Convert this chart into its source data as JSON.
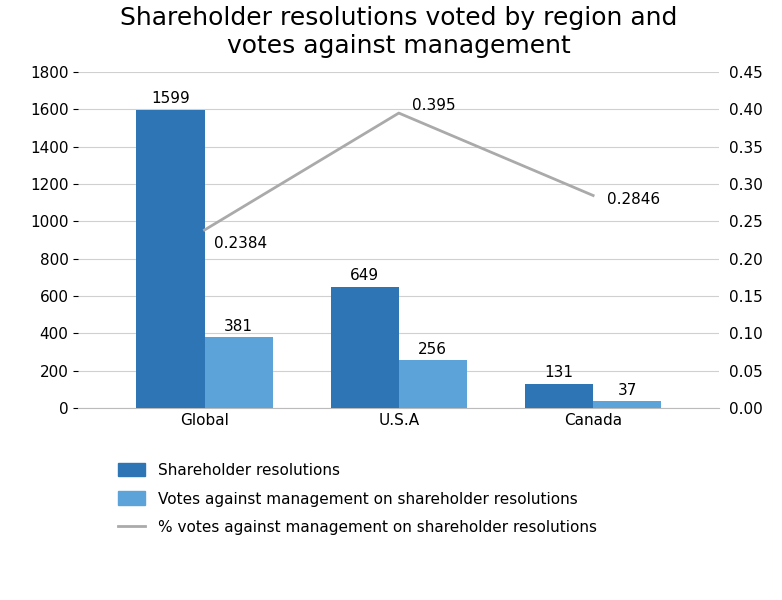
{
  "title": "Shareholder resolutions voted by region and\nvotes against management",
  "categories": [
    "Global",
    "U.S.A",
    "Canada"
  ],
  "bar1_values": [
    1599,
    649,
    131
  ],
  "bar2_values": [
    381,
    256,
    37
  ],
  "line_values": [
    0.2384,
    0.395,
    0.2846
  ],
  "line_labels": [
    "0.2384",
    "0.395",
    "0.2846"
  ],
  "bar1_color": "#2E75B6",
  "bar2_color": "#5BA3D9",
  "line_color": "#AAAAAA",
  "ylim_left": [
    0,
    1800
  ],
  "ylim_right": [
    0,
    0.45
  ],
  "yticks_left": [
    0,
    200,
    400,
    600,
    800,
    1000,
    1200,
    1400,
    1600,
    1800
  ],
  "yticks_right": [
    0,
    0.05,
    0.1,
    0.15,
    0.2,
    0.25,
    0.3,
    0.35,
    0.4,
    0.45
  ],
  "bar1_label": "Shareholder resolutions",
  "bar2_label": "Votes against management on shareholder resolutions",
  "line_label": "% votes against management on shareholder resolutions",
  "bar_width": 0.35,
  "background_color": "#ffffff",
  "title_fontsize": 18,
  "tick_fontsize": 11,
  "annot_fontsize": 11,
  "legend_fontsize": 11,
  "grid_color": "#D0D0D0",
  "spine_color": "#BBBBBB"
}
